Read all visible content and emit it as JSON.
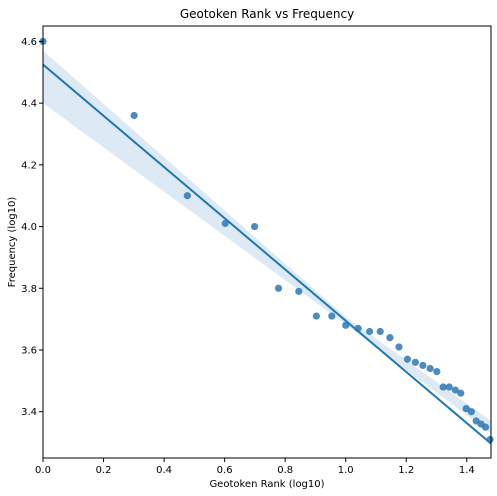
{
  "chart_data": {
    "type": "scatter",
    "title": "Geotoken Rank vs Frequency",
    "xlabel": "Geotoken Rank (log10)",
    "ylabel": "Frequency (log10)",
    "xlim": [
      0.0,
      1.48
    ],
    "ylim": [
      3.25,
      4.65
    ],
    "x_ticks": [
      "0.0",
      "0.2",
      "0.4",
      "0.6",
      "0.8",
      "1.0",
      "1.2",
      "1.4"
    ],
    "x_tick_values": [
      0.0,
      0.2,
      0.4,
      0.6,
      0.8,
      1.0,
      1.2,
      1.4
    ],
    "y_ticks": [
      "3.4",
      "3.6",
      "3.8",
      "4.0",
      "4.2",
      "4.4",
      "4.6"
    ],
    "y_tick_values": [
      3.4,
      3.6,
      3.8,
      4.0,
      4.2,
      4.4,
      4.6
    ],
    "grid": false,
    "series": [
      {
        "name": "geotokens",
        "x": [
          0.0,
          0.301,
          0.477,
          0.602,
          0.699,
          0.778,
          0.845,
          0.903,
          0.954,
          1.0,
          1.041,
          1.079,
          1.114,
          1.146,
          1.176,
          1.204,
          1.23,
          1.255,
          1.279,
          1.301,
          1.322,
          1.342,
          1.362,
          1.38,
          1.398,
          1.415,
          1.431,
          1.447,
          1.462,
          1.477
        ],
        "y": [
          4.6,
          4.36,
          4.1,
          4.01,
          4.0,
          3.8,
          3.79,
          3.71,
          3.71,
          3.68,
          3.67,
          3.66,
          3.66,
          3.64,
          3.61,
          3.57,
          3.56,
          3.55,
          3.54,
          3.53,
          3.48,
          3.48,
          3.47,
          3.46,
          3.41,
          3.4,
          3.37,
          3.36,
          3.35,
          3.31
        ]
      }
    ],
    "regression": {
      "intercept": 4.525,
      "slope": -0.83,
      "ci_lower_at_x0": 4.4,
      "ci_upper_at_x0": 4.57,
      "ci_lower_at_xmax": 3.33,
      "ci_upper_at_xmax": 3.37
    },
    "colors": {
      "points": "#2f78b4",
      "line": "#1f77b4",
      "band": "#c6dbef"
    }
  }
}
